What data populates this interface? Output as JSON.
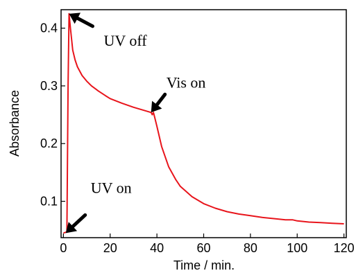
{
  "chart_data": {
    "type": "line",
    "xlabel": "Time /  min.",
    "ylabel": "Absorbance",
    "xlim": [
      -1,
      121
    ],
    "ylim": [
      0.037,
      0.432
    ],
    "x_ticks": [
      0,
      20,
      40,
      60,
      80,
      100,
      120
    ],
    "y_ticks": [
      0.1,
      0.2,
      0.3,
      0.4
    ],
    "x_tick_labels": [
      "0",
      "20",
      "40",
      "60",
      "80",
      "100",
      "120"
    ],
    "y_tick_labels": [
      "0.1",
      "0.2",
      "0.3",
      "0.4"
    ],
    "grid": false,
    "series": [
      {
        "color": "#e8141b",
        "x": [
          0,
          1.5,
          2,
          2.4,
          3,
          4,
          5,
          6,
          8,
          10,
          12,
          15,
          18,
          20,
          25,
          30,
          35,
          37.5,
          38,
          38.5,
          39,
          40,
          42,
          45,
          48,
          50,
          55,
          60,
          65,
          70,
          75,
          80,
          85,
          90,
          95,
          98,
          100,
          105,
          110,
          115,
          120
        ],
        "y": [
          0.045,
          0.047,
          0.3,
          0.425,
          0.4,
          0.362,
          0.345,
          0.333,
          0.318,
          0.308,
          0.3,
          0.291,
          0.283,
          0.278,
          0.27,
          0.263,
          0.257,
          0.254,
          0.25,
          0.254,
          0.246,
          0.23,
          0.195,
          0.16,
          0.138,
          0.126,
          0.108,
          0.096,
          0.088,
          0.082,
          0.078,
          0.075,
          0.072,
          0.07,
          0.068,
          0.068,
          0.066,
          0.064,
          0.063,
          0.062,
          0.061
        ]
      }
    ],
    "annotations": [
      {
        "text": "UV off",
        "x": 2.4,
        "y": 0.425
      },
      {
        "text": "Vis on",
        "x": 37.5,
        "y": 0.254
      },
      {
        "text": "UV on",
        "x": 1,
        "y": 0.045
      }
    ]
  }
}
